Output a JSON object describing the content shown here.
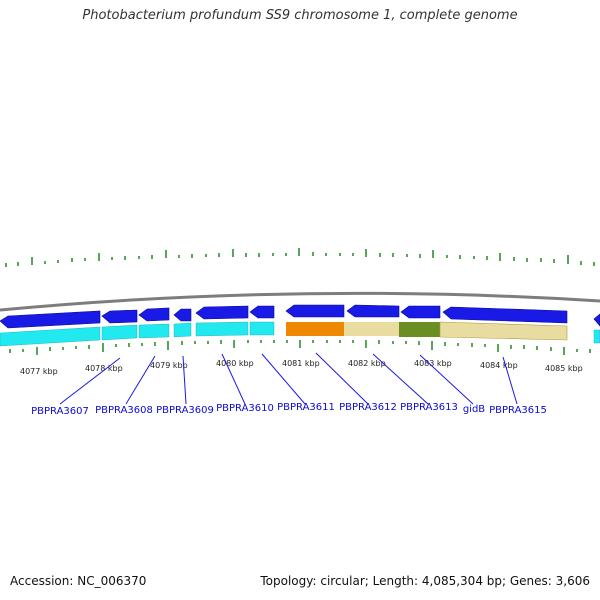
{
  "title": "Photobacterium profundum SS9 chromosome 1, complete genome",
  "footer": {
    "accession": "Accession: NC_006370",
    "summary": "Topology: circular; Length: 4,085,304 bp; Genes: 3,606"
  },
  "scale_labels": [
    "4077 kbp",
    "4078 kbp",
    "4079 kbp",
    "4080 kbp",
    "4081 kbp",
    "4082 kbp",
    "4083 kbp",
    "4084 kbp",
    "4085 kbp"
  ],
  "gene_labels": [
    "PBPRA3607",
    "PBPRA3608",
    "PBPRA3609",
    "PBPRA3610",
    "PBPRA3611",
    "PBPRA3612",
    "PBPRA3613",
    "gidB",
    "PBPRA3615"
  ],
  "colors": {
    "backbone": "#7d7d7d",
    "gene_forward": "#1a1ae6",
    "cds_ring": "#22e8f0",
    "tick": "#2f8f2f",
    "highlight_orange": "#ee8800",
    "highlight_tan": "#e8dca0",
    "highlight_olive": "#6b8e23",
    "label": "#0a0ad0"
  }
}
